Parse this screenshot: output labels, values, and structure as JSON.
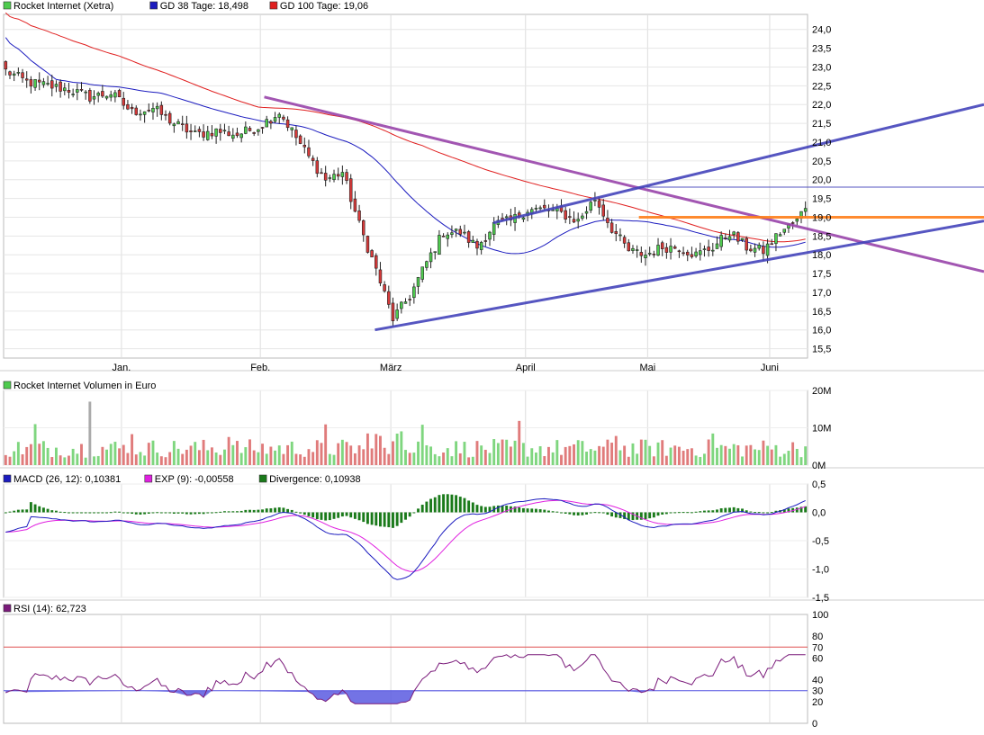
{
  "price_panel": {
    "legend": [
      {
        "label": "Rocket Internet (Xetra)",
        "color": "#4ecb4e"
      },
      {
        "label": "GD 38 Tage: 18,498",
        "color": "#1c1cbf"
      },
      {
        "label": "GD 100 Tage: 19,06",
        "color": "#e02020"
      }
    ],
    "y_ticks": [
      "24,0",
      "23,5",
      "23,0",
      "22,5",
      "22,0",
      "21,5",
      "21,0",
      "20,5",
      "20,0",
      "19,5",
      "19,0",
      "18,5",
      "18,0",
      "17,5",
      "17,0",
      "16,5",
      "16,0",
      "15,5"
    ],
    "month_labels": [
      "Jan.",
      "Feb.",
      "März",
      "April",
      "Mai",
      "Juni"
    ]
  },
  "volume_panel": {
    "legend": [
      {
        "label": "Rocket Internet Volumen in Euro",
        "color": "#4ecb4e"
      }
    ],
    "y_ticks": [
      "20M",
      "10M",
      "0M"
    ]
  },
  "macd_panel": {
    "legend": [
      {
        "label": "MACD (26, 12): 0,10381",
        "color": "#1c1cbf"
      },
      {
        "label": "EXP (9): -0,00558",
        "color": "#e020e0"
      },
      {
        "label": "Divergence: 0,10938",
        "color": "#1a7a1a"
      }
    ],
    "y_ticks": [
      "0,5",
      "0,0",
      "-0,5",
      "-1,0",
      "-1,5"
    ]
  },
  "rsi_panel": {
    "legend": [
      {
        "label": "RSI (14): 62,723",
        "color": "#7a1a7a"
      }
    ],
    "y_ticks": [
      "100",
      "80",
      "60",
      "40",
      "20",
      "0"
    ],
    "overbought_label": "70",
    "oversold_label": "30"
  },
  "colors": {
    "up": "#4ecb4e",
    "down": "#d83a3a",
    "ma38": "#1c1cbf",
    "ma100": "#e02020",
    "trend_blue": "#4444bb",
    "trend_purple": "#9944aa",
    "orange": "#ff7f1a"
  },
  "chart_data": {
    "type": "candlestick",
    "x_axis": {
      "ticks": [
        "Jan.",
        "Feb.",
        "März",
        "April",
        "Mai",
        "Juni"
      ]
    },
    "price": {
      "ylim": [
        15.25,
        24.4
      ],
      "moving_averages": [
        {
          "name": "GD 38 Tage",
          "last": 18.498
        },
        {
          "name": "GD 100 Tage",
          "last": 19.06
        }
      ],
      "anchor_closes": [
        [
          0,
          22.9
        ],
        [
          5,
          22.6
        ],
        [
          10,
          22.5
        ],
        [
          15,
          22.4
        ],
        [
          20,
          22.2
        ],
        [
          25,
          22.3
        ],
        [
          30,
          21.8
        ],
        [
          35,
          21.9
        ],
        [
          40,
          21.5
        ],
        [
          45,
          21.2
        ],
        [
          50,
          21.3
        ],
        [
          55,
          21.2
        ],
        [
          60,
          21.4
        ],
        [
          65,
          21.8
        ],
        [
          68,
          21.3
        ],
        [
          72,
          20.6
        ],
        [
          76,
          20.0
        ],
        [
          80,
          20.2
        ],
        [
          84,
          18.8
        ],
        [
          88,
          17.6
        ],
        [
          92,
          16.3
        ],
        [
          96,
          16.9
        ],
        [
          100,
          17.8
        ],
        [
          104,
          18.6
        ],
        [
          108,
          18.6
        ],
        [
          112,
          18.2
        ],
        [
          116,
          18.8
        ],
        [
          120,
          18.9
        ],
        [
          124,
          19.2
        ],
        [
          128,
          19.2
        ],
        [
          132,
          19.1
        ],
        [
          136,
          18.9
        ],
        [
          140,
          19.5
        ],
        [
          144,
          18.7
        ],
        [
          148,
          18.1
        ],
        [
          152,
          18.0
        ],
        [
          156,
          18.2
        ],
        [
          160,
          18.2
        ],
        [
          164,
          18.0
        ],
        [
          168,
          18.2
        ],
        [
          172,
          18.6
        ],
        [
          176,
          18.2
        ],
        [
          180,
          18.1
        ],
        [
          184,
          18.6
        ],
        [
          188,
          18.9
        ],
        [
          190,
          19.3
        ]
      ],
      "trend_lines": [
        {
          "color": "purple",
          "from": [
            "Feb.",
            22.2
          ],
          "to": [
            "end",
            17.55
          ]
        },
        {
          "color": "blue",
          "from": [
            "März",
            16.0
          ],
          "to": [
            "end",
            18.9
          ]
        },
        {
          "color": "blue",
          "from": [
            "März",
            18.85
          ],
          "to": [
            "end",
            22.0
          ]
        },
        {
          "color": "blue-thin",
          "from": [
            "Mai",
            19.8
          ],
          "to": [
            "end",
            19.8
          ]
        },
        {
          "color": "orange",
          "from": [
            "Mai",
            19.0
          ],
          "to": [
            "end",
            19.0
          ]
        }
      ]
    },
    "volume": {
      "ylim": [
        0,
        20
      ],
      "unit": "M Euro"
    },
    "macd": {
      "ylim": [
        -1.5,
        0.5
      ],
      "last": {
        "macd": 0.10381,
        "exp": -0.00558,
        "divergence": 0.10938
      },
      "min_macd": -1.12
    },
    "rsi": {
      "ylim": [
        0,
        100
      ],
      "levels": [
        70,
        30
      ],
      "last": 62.723
    }
  }
}
